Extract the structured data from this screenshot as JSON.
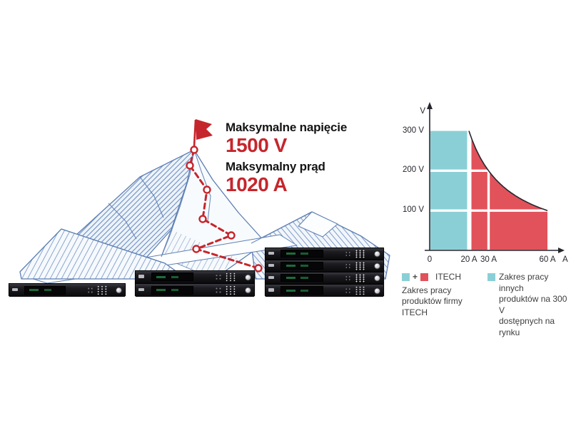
{
  "colors": {
    "accent_red": "#C5262D",
    "chart_red": "#E2525B",
    "chart_teal": "#8BCFD6",
    "mountain_blue": "#5d7fb3",
    "text_dark": "#141414",
    "legend_gray": "#3d3d3d"
  },
  "hero": {
    "max_voltage_label": "Maksymalne napięcie",
    "max_voltage_value": "1500 V",
    "max_current_label": "Maksymalny prąd",
    "max_current_value": "1020 A"
  },
  "devices": [
    {
      "name": "rack-1u",
      "units": 1
    },
    {
      "name": "rack-2u",
      "units": 2
    },
    {
      "name": "rack-4u",
      "units": 4
    }
  ],
  "chart_data": {
    "type": "area",
    "title": "",
    "x_axis_label": "A",
    "y_axis_label": "V",
    "xlim": [
      0,
      68
    ],
    "ylim": [
      0,
      360
    ],
    "grid": "off",
    "legend_position": "below",
    "x_ticks": [
      {
        "value": 0,
        "label": "0"
      },
      {
        "value": 20,
        "label": "20 A"
      },
      {
        "value": 30,
        "label": "30 A"
      },
      {
        "value": 60,
        "label": "60 A"
      }
    ],
    "y_ticks": [
      {
        "value": 300,
        "label": "300 V"
      },
      {
        "value": 200,
        "label": "200 V"
      },
      {
        "value": 100,
        "label": "100 V"
      }
    ],
    "regions": [
      {
        "name": "zakres-innych-300v",
        "color": "#8BCFD6",
        "a_range": [
          0,
          20
        ],
        "v_range": [
          0,
          300
        ],
        "meaning": "Zakres pracy innych produktów na 300 V dostępnych na rynku"
      },
      {
        "name": "zakres-itech",
        "color": "#E2525B",
        "a_range": [
          20,
          60
        ],
        "v_range": [
          0,
          300
        ],
        "bounded_by": "constant-power",
        "power_w": 6000,
        "meaning": "Zakres pracy produktów firmy ITECH"
      }
    ],
    "white_gridlines": {
      "horizontal_v": [
        200,
        100
      ],
      "vertical_a": [
        30
      ]
    },
    "key_points": [
      {
        "a": 20,
        "v": 300
      },
      {
        "a": 30,
        "v": 200
      },
      {
        "a": 60,
        "v": 100
      }
    ]
  },
  "legend": {
    "itech": {
      "plus": "+",
      "title": "ITECH",
      "lines": [
        "Zakres pracy",
        "produktów firmy",
        "ITECH"
      ]
    },
    "others": {
      "lines": [
        "Zakres pracy innych",
        "produktów na 300 V",
        "dostępnych na rynku"
      ]
    }
  }
}
